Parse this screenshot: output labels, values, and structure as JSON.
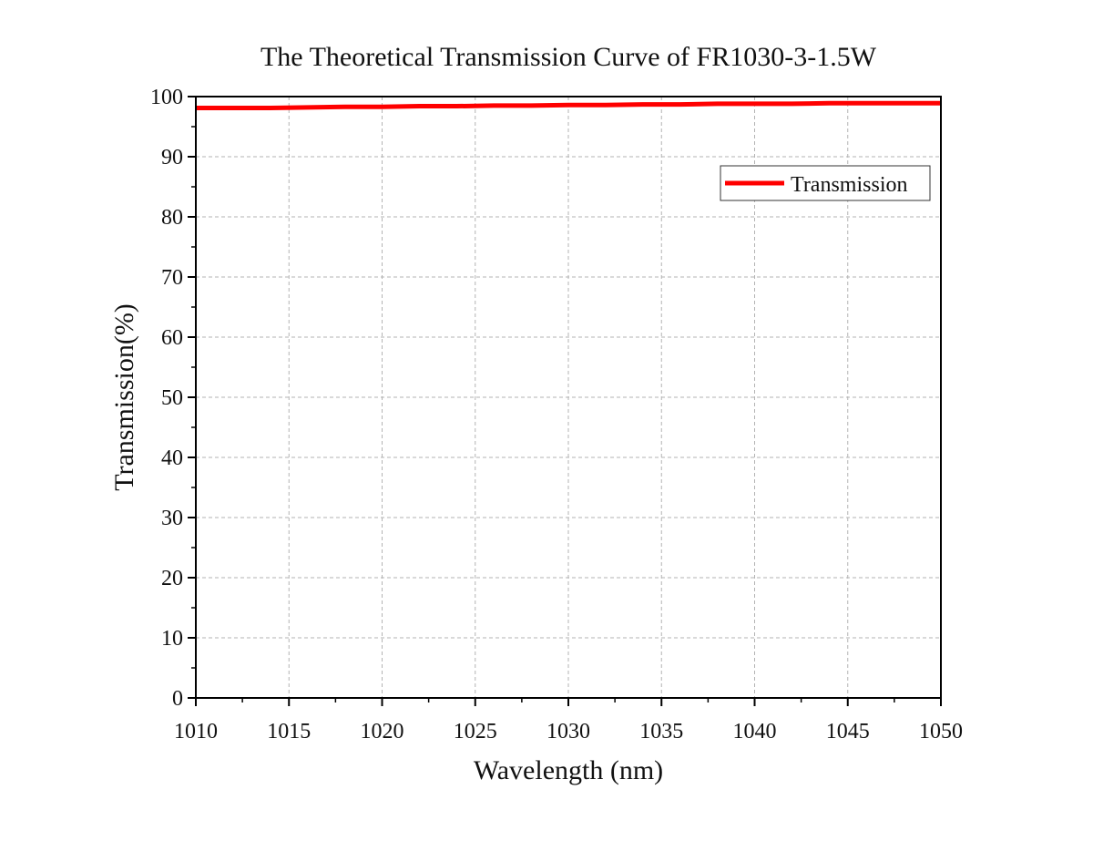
{
  "chart_data": {
    "type": "line",
    "title": "The Theoretical Transmission Curve of FR1030-3-1.5W",
    "xlabel": "Wavelength (nm)",
    "ylabel": "Transmission(%)",
    "xlim": [
      1010,
      1050
    ],
    "ylim": [
      0,
      100
    ],
    "x_ticks": [
      1010,
      1015,
      1020,
      1025,
      1030,
      1035,
      1040,
      1045,
      1050
    ],
    "y_ticks": [
      0,
      10,
      20,
      30,
      40,
      50,
      60,
      70,
      80,
      90,
      100
    ],
    "grid": true,
    "legend_position": "top-right",
    "series": [
      {
        "name": "Transmission",
        "color": "#ff0000",
        "x": [
          1010,
          1012,
          1014,
          1016,
          1018,
          1020,
          1022,
          1024,
          1026,
          1028,
          1030,
          1032,
          1034,
          1036,
          1038,
          1040,
          1042,
          1044,
          1046,
          1048,
          1050
        ],
        "y": [
          98.1,
          98.1,
          98.1,
          98.2,
          98.3,
          98.3,
          98.4,
          98.4,
          98.5,
          98.5,
          98.6,
          98.6,
          98.7,
          98.7,
          98.8,
          98.8,
          98.8,
          98.9,
          98.9,
          98.9,
          98.9
        ]
      }
    ]
  }
}
